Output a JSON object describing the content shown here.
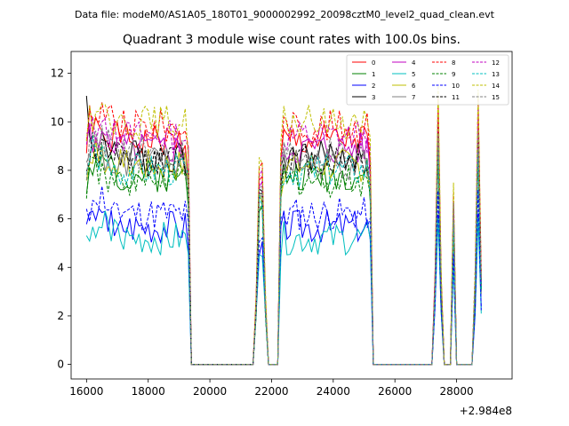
{
  "figure": {
    "suptitle": "Data file: modeM0/AS1A05_180T01_9000002992_20098cztM0_level2_quad_clean.evt",
    "title": "Quadrant 3 module wise count rates with 100.0s bins.",
    "offset_label": "+2.984e8"
  },
  "chart_data": {
    "type": "line",
    "title": "Quadrant 3 module wise count rates with 100.0s bins.",
    "xlabel": "",
    "ylabel": "",
    "x_offset": 298400000,
    "xlim": [
      15500,
      29800
    ],
    "ylim": [
      -0.6,
      12.9
    ],
    "xticks": [
      16000,
      18000,
      20000,
      22000,
      24000,
      26000,
      28000
    ],
    "xtick_labels": [
      "16000",
      "18000",
      "20000",
      "22000",
      "24000",
      "26000",
      "28000"
    ],
    "yticks": [
      0,
      2,
      4,
      6,
      8,
      10,
      12
    ],
    "ytick_labels": [
      "0",
      "2",
      "4",
      "6",
      "8",
      "10",
      "12"
    ],
    "grid": false,
    "legend_placement": "top-right",
    "legend_columns": 4,
    "segments": [
      {
        "start": 16000,
        "end": 19300
      },
      {
        "start": 21500,
        "end": 21800
      },
      {
        "start": 22300,
        "end": 25200
      },
      {
        "start": 27300,
        "end": 27500
      },
      {
        "start": 27900,
        "end": 27950
      },
      {
        "start": 28600,
        "end": 28800
      }
    ],
    "series": [
      {
        "name": "0",
        "color": "#ff0000",
        "dash": "solid",
        "level": 9.2,
        "seed": 1
      },
      {
        "name": "1",
        "color": "#008000",
        "dash": "solid",
        "level": 7.8,
        "seed": 2
      },
      {
        "name": "2",
        "color": "#0000ff",
        "dash": "solid",
        "level": 5.7,
        "seed": 3
      },
      {
        "name": "3",
        "color": "#000000",
        "dash": "solid",
        "level": 8.6,
        "seed": 4
      },
      {
        "name": "4",
        "color": "#c000c0",
        "dash": "solid",
        "level": 8.9,
        "seed": 5
      },
      {
        "name": "5",
        "color": "#00bfbf",
        "dash": "solid",
        "level": 5.2,
        "seed": 6
      },
      {
        "name": "6",
        "color": "#bfbf00",
        "dash": "solid",
        "level": 8.2,
        "seed": 7
      },
      {
        "name": "7",
        "color": "#808080",
        "dash": "solid",
        "level": 8.3,
        "seed": 8
      },
      {
        "name": "8",
        "color": "#ff0000",
        "dash": "dashed",
        "level": 9.8,
        "seed": 9
      },
      {
        "name": "9",
        "color": "#008000",
        "dash": "dashed",
        "level": 7.6,
        "seed": 10
      },
      {
        "name": "10",
        "color": "#0000ff",
        "dash": "dashed",
        "level": 6.2,
        "seed": 11
      },
      {
        "name": "11",
        "color": "#000000",
        "dash": "dashed",
        "level": 8.4,
        "seed": 12
      },
      {
        "name": "12",
        "color": "#c000c0",
        "dash": "dashed",
        "level": 9.4,
        "seed": 13
      },
      {
        "name": "13",
        "color": "#00bfbf",
        "dash": "dashed",
        "level": 8.0,
        "seed": 14
      },
      {
        "name": "14",
        "color": "#bfbf00",
        "dash": "dashed",
        "level": 10.0,
        "seed": 15
      },
      {
        "name": "15",
        "color": "#808080",
        "dash": "dashed",
        "level": 8.7,
        "seed": 16
      }
    ]
  }
}
